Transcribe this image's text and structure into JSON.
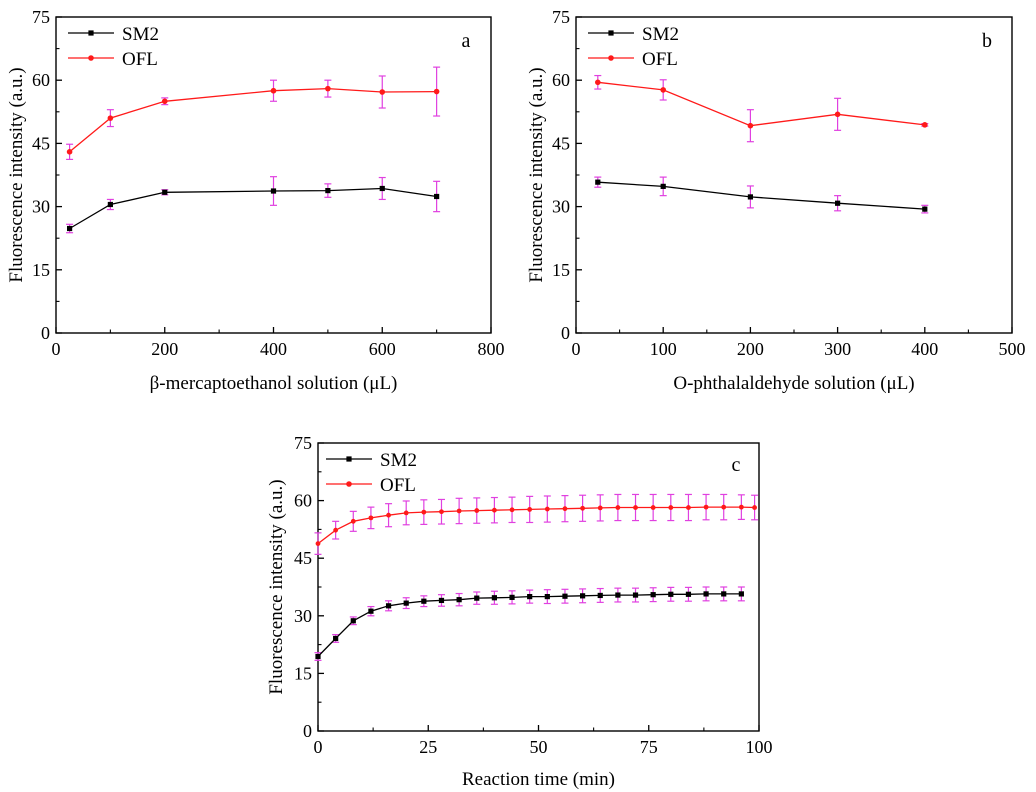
{
  "colors": {
    "SM2": "#000000",
    "OFL": "#ff1a1a",
    "error_bar": "#e040e0",
    "axis": "#000000"
  },
  "chart_data": [
    {
      "type": "line",
      "panel_label": "a",
      "xlabel": "β-mercaptoethanol  solution (μL)",
      "ylabel": "Fluorescence intensity (a.u.)",
      "xlim": [
        0,
        800
      ],
      "ylim": [
        0,
        75
      ],
      "xticks": [
        0,
        200,
        400,
        600,
        800
      ],
      "yticks": [
        0,
        15,
        30,
        45,
        60,
        75
      ],
      "legend_position": "top-left",
      "series": [
        {
          "name": "SM2",
          "color": "#000000",
          "x": [
            25,
            100,
            200,
            400,
            500,
            600,
            700
          ],
          "y": [
            24.8,
            30.5,
            33.4,
            33.7,
            33.8,
            34.3,
            32.4
          ],
          "err": [
            1.0,
            1.2,
            0.6,
            3.4,
            1.6,
            2.6,
            3.6
          ]
        },
        {
          "name": "OFL",
          "color": "#ff1a1a",
          "x": [
            25,
            100,
            200,
            400,
            500,
            600,
            700
          ],
          "y": [
            43.0,
            51.0,
            55.0,
            57.5,
            58.0,
            57.2,
            57.3
          ],
          "err": [
            1.8,
            2.0,
            0.8,
            2.5,
            2.0,
            3.8,
            5.8
          ]
        }
      ]
    },
    {
      "type": "line",
      "panel_label": "b",
      "xlabel": "O-phthalaldehyde solution (μL)",
      "ylabel": "Fluorescence intensity (a.u.)",
      "xlim": [
        0,
        500
      ],
      "ylim": [
        0,
        75
      ],
      "xticks": [
        0,
        100,
        200,
        300,
        400,
        500
      ],
      "yticks": [
        0,
        15,
        30,
        45,
        60,
        75
      ],
      "legend_position": "top-left",
      "series": [
        {
          "name": "SM2",
          "color": "#000000",
          "x": [
            25,
            100,
            200,
            300,
            400
          ],
          "y": [
            35.8,
            34.8,
            32.3,
            30.8,
            29.4
          ],
          "err": [
            1.2,
            2.2,
            2.6,
            1.8,
            0.9
          ]
        },
        {
          "name": "OFL",
          "color": "#ff1a1a",
          "x": [
            25,
            100,
            200,
            300,
            400
          ],
          "y": [
            59.5,
            57.7,
            49.2,
            51.9,
            49.4
          ],
          "err": [
            1.6,
            2.4,
            3.8,
            3.8,
            0.3
          ]
        }
      ]
    },
    {
      "type": "line",
      "panel_label": "c",
      "xlabel": "Reaction time (min)",
      "ylabel": "Fluorescence intensity (a.u.)",
      "xlim": [
        0,
        100
      ],
      "ylim": [
        0,
        75
      ],
      "xticks": [
        0,
        25,
        50,
        75,
        100
      ],
      "yticks": [
        0,
        15,
        30,
        45,
        60,
        75
      ],
      "legend_position": "top-left",
      "series": [
        {
          "name": "SM2",
          "color": "#000000",
          "x": [
            0,
            4,
            8,
            12,
            16,
            20,
            24,
            28,
            32,
            36,
            40,
            44,
            48,
            52,
            56,
            60,
            64,
            68,
            72,
            76,
            80,
            84,
            88,
            92,
            96
          ],
          "y": [
            19.4,
            24.1,
            28.7,
            31.2,
            32.6,
            33.3,
            33.8,
            34.0,
            34.2,
            34.6,
            34.7,
            34.8,
            35.0,
            35.0,
            35.1,
            35.2,
            35.3,
            35.4,
            35.4,
            35.5,
            35.6,
            35.6,
            35.7,
            35.7,
            35.7
          ],
          "err": [
            1.0,
            1.0,
            1.0,
            1.2,
            1.3,
            1.4,
            1.4,
            1.5,
            1.6,
            1.6,
            1.7,
            1.7,
            1.7,
            1.8,
            1.8,
            1.8,
            1.8,
            1.8,
            1.8,
            1.8,
            1.8,
            1.8,
            1.8,
            1.8,
            1.8
          ]
        },
        {
          "name": "OFL",
          "color": "#ff1a1a",
          "x": [
            0,
            4,
            8,
            12,
            16,
            20,
            24,
            28,
            32,
            36,
            40,
            44,
            48,
            52,
            56,
            60,
            64,
            68,
            72,
            76,
            80,
            84,
            88,
            92,
            96,
            99
          ],
          "y": [
            48.8,
            52.3,
            54.6,
            55.5,
            56.2,
            56.8,
            57.0,
            57.1,
            57.3,
            57.4,
            57.5,
            57.6,
            57.7,
            57.8,
            57.9,
            58.0,
            58.1,
            58.2,
            58.2,
            58.2,
            58.2,
            58.2,
            58.3,
            58.3,
            58.3,
            58.2
          ],
          "err": [
            2.8,
            2.3,
            2.6,
            2.8,
            3.0,
            3.1,
            3.2,
            3.2,
            3.3,
            3.3,
            3.3,
            3.3,
            3.4,
            3.4,
            3.4,
            3.4,
            3.4,
            3.4,
            3.4,
            3.4,
            3.4,
            3.4,
            3.3,
            3.3,
            3.2,
            3.2
          ]
        }
      ]
    }
  ]
}
